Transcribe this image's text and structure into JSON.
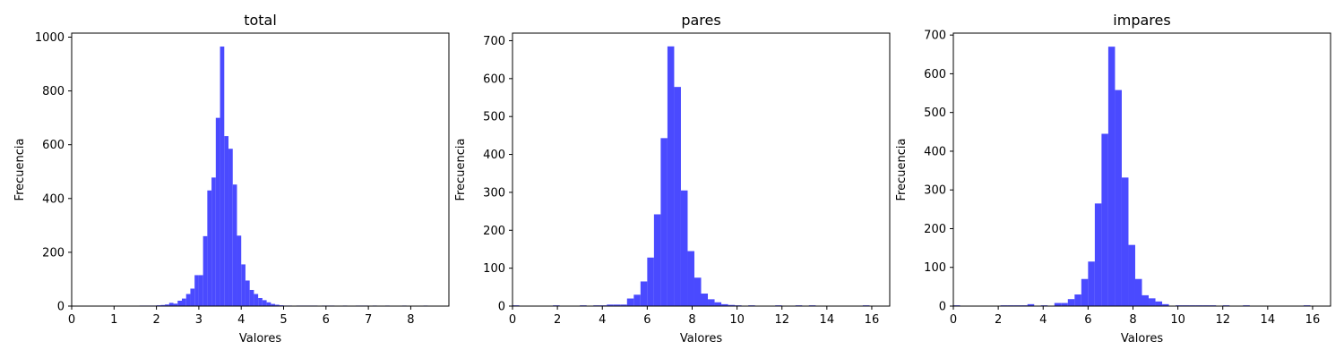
{
  "chart_data": [
    {
      "type": "bar",
      "title": "total",
      "xlabel": "Valores",
      "ylabel": "Frecuencia",
      "bar_color": "#4a4aff",
      "grid": false,
      "xlim": [
        0,
        8.9
      ],
      "ylim": [
        0,
        1015
      ],
      "xticks": [
        0,
        1,
        2,
        3,
        4,
        5,
        6,
        7,
        8
      ],
      "yticks": [
        0,
        200,
        400,
        600,
        800,
        1000
      ],
      "bin_width": 0.1,
      "bins": [
        [
          1.6,
          2
        ],
        [
          1.7,
          2
        ],
        [
          1.8,
          2
        ],
        [
          1.9,
          2
        ],
        [
          2.0,
          3
        ],
        [
          2.1,
          4
        ],
        [
          2.2,
          6
        ],
        [
          2.3,
          12
        ],
        [
          2.4,
          9
        ],
        [
          2.5,
          20
        ],
        [
          2.6,
          28
        ],
        [
          2.7,
          45
        ],
        [
          2.8,
          65
        ],
        [
          2.9,
          115
        ],
        [
          3.0,
          115
        ],
        [
          3.1,
          260
        ],
        [
          3.2,
          430
        ],
        [
          3.3,
          478
        ],
        [
          3.4,
          700
        ],
        [
          3.5,
          965
        ],
        [
          3.6,
          632
        ],
        [
          3.7,
          585
        ],
        [
          3.8,
          452
        ],
        [
          3.9,
          262
        ],
        [
          4.0,
          155
        ],
        [
          4.1,
          95
        ],
        [
          4.2,
          60
        ],
        [
          4.3,
          45
        ],
        [
          4.4,
          30
        ],
        [
          4.5,
          22
        ],
        [
          4.6,
          14
        ],
        [
          4.7,
          8
        ],
        [
          4.8,
          5
        ],
        [
          4.9,
          3
        ],
        [
          5.0,
          2
        ],
        [
          5.1,
          2
        ],
        [
          5.3,
          2
        ],
        [
          5.4,
          2
        ],
        [
          5.5,
          2
        ],
        [
          5.6,
          2
        ],
        [
          5.7,
          2
        ],
        [
          5.9,
          2
        ],
        [
          6.0,
          2
        ],
        [
          6.1,
          2
        ],
        [
          6.4,
          2
        ],
        [
          6.7,
          2
        ],
        [
          6.8,
          2
        ],
        [
          6.9,
          2
        ],
        [
          7.1,
          2
        ],
        [
          7.4,
          2
        ],
        [
          7.8,
          2
        ],
        [
          8.3,
          2
        ]
      ]
    },
    {
      "type": "bar",
      "title": "pares",
      "xlabel": "Valores",
      "ylabel": "Frecuencia",
      "bar_color": "#4a4aff",
      "grid": false,
      "xlim": [
        0,
        16.8
      ],
      "ylim": [
        0,
        720
      ],
      "xticks": [
        0,
        2,
        4,
        6,
        8,
        10,
        12,
        14,
        16
      ],
      "yticks": [
        0,
        100,
        200,
        300,
        400,
        500,
        600,
        700
      ],
      "bin_width": 0.3,
      "bins": [
        [
          0.0,
          2
        ],
        [
          1.8,
          2
        ],
        [
          3.0,
          2
        ],
        [
          3.6,
          2
        ],
        [
          3.9,
          2
        ],
        [
          4.2,
          4
        ],
        [
          4.5,
          4
        ],
        [
          4.8,
          4
        ],
        [
          5.1,
          20
        ],
        [
          5.4,
          30
        ],
        [
          5.7,
          65
        ],
        [
          6.0,
          128
        ],
        [
          6.3,
          242
        ],
        [
          6.6,
          443
        ],
        [
          6.9,
          685
        ],
        [
          7.2,
          578
        ],
        [
          7.5,
          305
        ],
        [
          7.8,
          145
        ],
        [
          8.1,
          75
        ],
        [
          8.4,
          33
        ],
        [
          8.7,
          18
        ],
        [
          9.0,
          10
        ],
        [
          9.3,
          5
        ],
        [
          9.6,
          3
        ],
        [
          9.9,
          2
        ],
        [
          10.5,
          2
        ],
        [
          11.7,
          2
        ],
        [
          12.6,
          2
        ],
        [
          13.2,
          2
        ],
        [
          15.6,
          2
        ]
      ]
    },
    {
      "type": "bar",
      "title": "impares",
      "xlabel": "Valores",
      "ylabel": "Frecuencia",
      "bar_color": "#4a4aff",
      "grid": false,
      "xlim": [
        0,
        16.8
      ],
      "ylim": [
        0,
        705
      ],
      "xticks": [
        0,
        2,
        4,
        6,
        8,
        10,
        12,
        14,
        16
      ],
      "yticks": [
        0,
        100,
        200,
        300,
        400,
        500,
        600,
        700
      ],
      "bin_width": 0.3,
      "bins": [
        [
          0.0,
          2
        ],
        [
          2.1,
          2
        ],
        [
          2.4,
          2
        ],
        [
          2.7,
          2
        ],
        [
          3.0,
          2
        ],
        [
          3.3,
          5
        ],
        [
          3.9,
          2
        ],
        [
          4.5,
          8
        ],
        [
          4.8,
          8
        ],
        [
          5.1,
          18
        ],
        [
          5.4,
          30
        ],
        [
          5.7,
          70
        ],
        [
          6.0,
          115
        ],
        [
          6.3,
          265
        ],
        [
          6.6,
          445
        ],
        [
          6.9,
          670
        ],
        [
          7.2,
          558
        ],
        [
          7.5,
          332
        ],
        [
          7.8,
          158
        ],
        [
          8.1,
          70
        ],
        [
          8.4,
          28
        ],
        [
          8.7,
          20
        ],
        [
          9.0,
          12
        ],
        [
          9.3,
          5
        ],
        [
          9.9,
          2
        ],
        [
          10.2,
          2
        ],
        [
          10.5,
          2
        ],
        [
          10.8,
          2
        ],
        [
          11.1,
          2
        ],
        [
          11.4,
          2
        ],
        [
          12.0,
          2
        ],
        [
          12.9,
          2
        ],
        [
          15.6,
          2
        ]
      ]
    }
  ]
}
